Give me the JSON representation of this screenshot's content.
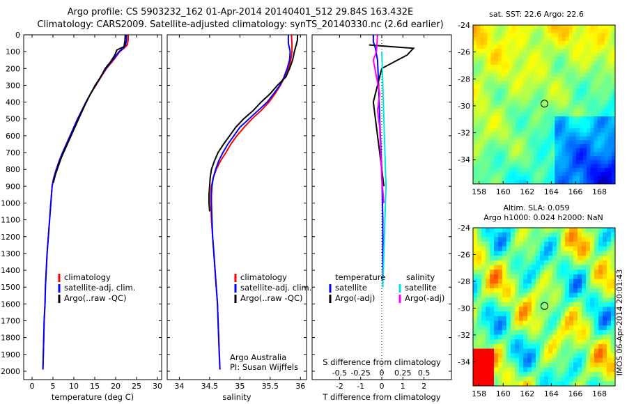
{
  "header": {
    "line1": "Argo profile: CS 5903232_162 01-Apr-2014 20140401_512 29.84S 163.432E",
    "line2": "Climatology: CARS2009. Satellite-adjusted climatology: synTS_20140330.nc (2.6d earlier)"
  },
  "colors": {
    "climatology": "#ff0000",
    "satellite": "#0000ff",
    "argo": "#000000",
    "sat_salinity": "#00e5e5",
    "argo_salinity": "#ff00ff"
  },
  "chart_data": [
    {
      "type": "line",
      "id": "temperature-profile",
      "xlabel": "temperature (deg C)",
      "ylabel": "",
      "xlim": [
        -2,
        31
      ],
      "ylim": [
        2050,
        0
      ],
      "xticks": [
        0,
        5,
        10,
        15,
        20,
        25,
        30
      ],
      "yticks": [
        0,
        100,
        200,
        300,
        400,
        500,
        600,
        700,
        800,
        900,
        1000,
        1100,
        1200,
        1300,
        1400,
        1500,
        1600,
        1700,
        1800,
        1900,
        2000
      ],
      "legend": [
        "climatology",
        "satellite-adj. clim.",
        "Argo(..raw -QC)"
      ],
      "series": [
        {
          "name": "climatology",
          "color": "#ff0000",
          "points": [
            [
              23.0,
              0
            ],
            [
              23.0,
              30
            ],
            [
              22.8,
              60
            ],
            [
              22.0,
              80
            ],
            [
              21.0,
              100
            ],
            [
              19.5,
              150
            ],
            [
              17.8,
              200
            ],
            [
              16.5,
              250
            ],
            [
              15.3,
              300
            ],
            [
              14.0,
              350
            ],
            [
              12.9,
              400
            ],
            [
              11.9,
              450
            ],
            [
              10.9,
              500
            ],
            [
              10.0,
              550
            ],
            [
              9.1,
              600
            ],
            [
              8.2,
              650
            ],
            [
              7.3,
              700
            ],
            [
              6.5,
              750
            ],
            [
              5.8,
              800
            ],
            [
              5.2,
              850
            ],
            [
              4.8,
              900
            ],
            [
              4.5,
              1000
            ],
            [
              4.2,
              1100
            ],
            [
              3.9,
              1200
            ],
            [
              3.6,
              1300
            ],
            [
              3.4,
              1400
            ],
            [
              3.2,
              1500
            ],
            [
              3.1,
              1600
            ],
            [
              2.9,
              1700
            ],
            [
              2.8,
              1800
            ],
            [
              2.7,
              1900
            ],
            [
              2.6,
              1990
            ]
          ]
        },
        {
          "name": "satellite-adj. clim.",
          "color": "#0000ff",
          "points": [
            [
              22.6,
              0
            ],
            [
              22.6,
              30
            ],
            [
              22.4,
              60
            ],
            [
              21.8,
              80
            ],
            [
              20.8,
              100
            ],
            [
              19.3,
              150
            ],
            [
              17.7,
              200
            ],
            [
              16.4,
              250
            ],
            [
              15.2,
              300
            ],
            [
              14.0,
              350
            ],
            [
              12.9,
              400
            ],
            [
              11.9,
              450
            ],
            [
              10.9,
              500
            ],
            [
              10.0,
              550
            ],
            [
              9.1,
              600
            ],
            [
              8.2,
              650
            ],
            [
              7.3,
              700
            ],
            [
              6.5,
              750
            ],
            [
              5.8,
              800
            ],
            [
              5.2,
              850
            ],
            [
              4.8,
              900
            ],
            [
              4.5,
              1000
            ],
            [
              4.2,
              1100
            ],
            [
              3.9,
              1200
            ],
            [
              3.6,
              1300
            ],
            [
              3.4,
              1400
            ],
            [
              3.2,
              1500
            ],
            [
              3.1,
              1600
            ],
            [
              2.9,
              1700
            ],
            [
              2.8,
              1800
            ],
            [
              2.7,
              1900
            ],
            [
              2.6,
              1990
            ]
          ]
        },
        {
          "name": "Argo(..raw -QC)",
          "color": "#000000",
          "points": [
            [
              22.3,
              0
            ],
            [
              22.2,
              40
            ],
            [
              22.0,
              70
            ],
            [
              20.3,
              90
            ],
            [
              19.8,
              120
            ],
            [
              18.8,
              160
            ],
            [
              17.5,
              200
            ],
            [
              16.2,
              260
            ],
            [
              15.1,
              300
            ],
            [
              13.6,
              370
            ],
            [
              12.6,
              420
            ],
            [
              11.5,
              480
            ],
            [
              10.6,
              530
            ],
            [
              9.7,
              580
            ],
            [
              8.8,
              630
            ],
            [
              7.9,
              680
            ],
            [
              7.0,
              730
            ],
            [
              6.3,
              780
            ],
            [
              5.6,
              830
            ],
            [
              5.1,
              880
            ]
          ]
        }
      ]
    },
    {
      "type": "line",
      "id": "salinity-profile",
      "xlabel": "salinity",
      "xlim": [
        33.8,
        36.1
      ],
      "ylim": [
        2050,
        0
      ],
      "xticks": [
        34,
        34.5,
        35,
        35.5,
        36
      ],
      "xtick_labels": [
        "34",
        "34.5",
        "35",
        "35.5",
        "36"
      ],
      "legend": [
        "climatology",
        "satellite-adj. clim.",
        "Argo(..raw -QC)"
      ],
      "annotation": [
        "Argo Australia",
        "PI: Susan Wijffels"
      ],
      "series": [
        {
          "name": "climatology",
          "color": "#ff0000",
          "points": [
            [
              35.85,
              0
            ],
            [
              35.86,
              50
            ],
            [
              35.86,
              100
            ],
            [
              35.84,
              150
            ],
            [
              35.8,
              200
            ],
            [
              35.74,
              250
            ],
            [
              35.67,
              300
            ],
            [
              35.58,
              350
            ],
            [
              35.48,
              400
            ],
            [
              35.35,
              450
            ],
            [
              35.2,
              500
            ],
            [
              35.07,
              550
            ],
            [
              34.95,
              600
            ],
            [
              34.85,
              650
            ],
            [
              34.77,
              700
            ],
            [
              34.68,
              750
            ],
            [
              34.61,
              800
            ],
            [
              34.56,
              850
            ],
            [
              34.53,
              900
            ],
            [
              34.52,
              950
            ],
            [
              34.52,
              1000
            ],
            [
              34.53,
              1100
            ],
            [
              34.55,
              1200
            ],
            [
              34.57,
              1300
            ],
            [
              34.59,
              1400
            ],
            [
              34.61,
              1500
            ],
            [
              34.63,
              1600
            ],
            [
              34.64,
              1700
            ],
            [
              34.65,
              1800
            ],
            [
              34.66,
              1900
            ],
            [
              34.67,
              1990
            ]
          ]
        },
        {
          "name": "satellite-adj. clim.",
          "color": "#0000ff",
          "points": [
            [
              35.8,
              0
            ],
            [
              35.8,
              50
            ],
            [
              35.83,
              100
            ],
            [
              35.82,
              150
            ],
            [
              35.78,
              200
            ],
            [
              35.73,
              250
            ],
            [
              35.66,
              300
            ],
            [
              35.56,
              350
            ],
            [
              35.45,
              400
            ],
            [
              35.3,
              450
            ],
            [
              35.15,
              500
            ],
            [
              35.0,
              550
            ],
            [
              34.9,
              600
            ],
            [
              34.8,
              650
            ],
            [
              34.72,
              700
            ],
            [
              34.65,
              750
            ],
            [
              34.6,
              800
            ],
            [
              34.56,
              850
            ],
            [
              34.54,
              900
            ],
            [
              34.53,
              950
            ],
            [
              34.53,
              1000
            ],
            [
              34.54,
              1100
            ],
            [
              34.55,
              1200
            ],
            [
              34.57,
              1300
            ],
            [
              34.59,
              1400
            ],
            [
              34.61,
              1500
            ],
            [
              34.63,
              1600
            ],
            [
              34.64,
              1700
            ],
            [
              34.65,
              1800
            ],
            [
              34.66,
              1900
            ],
            [
              34.67,
              1990
            ]
          ]
        },
        {
          "name": "Argo(..raw -QC)",
          "color": "#000000",
          "points": [
            [
              35.95,
              0
            ],
            [
              35.95,
              30
            ],
            [
              35.93,
              60
            ],
            [
              35.9,
              100
            ],
            [
              35.87,
              150
            ],
            [
              35.82,
              200
            ],
            [
              35.76,
              250
            ],
            [
              35.62,
              300
            ],
            [
              35.5,
              350
            ],
            [
              35.35,
              400
            ],
            [
              35.22,
              450
            ],
            [
              35.06,
              500
            ],
            [
              34.93,
              550
            ],
            [
              34.83,
              600
            ],
            [
              34.73,
              650
            ],
            [
              34.64,
              700
            ],
            [
              34.58,
              750
            ],
            [
              34.53,
              800
            ],
            [
              34.51,
              850
            ],
            [
              34.5,
              900
            ],
            [
              34.49,
              950
            ],
            [
              34.49,
              1000
            ],
            [
              34.5,
              1050
            ]
          ]
        }
      ]
    },
    {
      "type": "line",
      "id": "difference-profile",
      "xlabel_top": "S difference from climatology",
      "xlabel": "T difference from climatology",
      "xlim": [
        -3.3,
        3.3
      ],
      "ylim": [
        2050,
        0
      ],
      "xticks": [
        -2,
        -1,
        0,
        1,
        2
      ],
      "top_ticks": [
        "-0.5",
        "-0.25",
        "0",
        "0.25",
        "0.5"
      ],
      "legend_headings": [
        "temperature",
        "salinity"
      ],
      "legend": [
        "satellite",
        "Argo(-adj)",
        "satellite",
        "Argo(-adj)"
      ],
      "series": [
        {
          "name": "satellite",
          "quantity": "temperature",
          "color": "#0000ff",
          "points": [
            [
              -0.4,
              0
            ],
            [
              -0.4,
              40
            ],
            [
              -0.3,
              80
            ],
            [
              -0.2,
              150
            ],
            [
              -0.15,
              300
            ],
            [
              -0.1,
              500
            ],
            [
              0.0,
              800
            ],
            [
              0.05,
              1100
            ],
            [
              0.05,
              1500
            ]
          ]
        },
        {
          "name": "Argo(-adj)",
          "quantity": "temperature",
          "color": "#000000",
          "points": [
            [
              -0.6,
              60
            ],
            [
              0.4,
              70
            ],
            [
              1.5,
              80
            ],
            [
              1.2,
              120
            ],
            [
              0.0,
              200
            ],
            [
              -0.2,
              300
            ],
            [
              -0.4,
              400
            ],
            [
              -0.3,
              500
            ],
            [
              -0.2,
              600
            ],
            [
              -0.1,
              700
            ],
            [
              0.0,
              800
            ],
            [
              0.1,
              900
            ]
          ]
        },
        {
          "name": "satellite",
          "quantity": "salinity",
          "color": "#00e5e5",
          "points": [
            [
              0.0,
              100
            ],
            [
              0.05,
              300
            ],
            [
              0.1,
              500
            ],
            [
              0.15,
              700
            ],
            [
              0.2,
              900
            ],
            [
              0.15,
              1100
            ],
            [
              0.1,
              1300
            ],
            [
              0.05,
              1500
            ]
          ]
        },
        {
          "name": "Argo(-adj)",
          "quantity": "salinity",
          "color": "#ff00ff",
          "points": [
            [
              -0.2,
              0
            ],
            [
              -0.25,
              100
            ],
            [
              -0.4,
              150
            ],
            [
              -0.25,
              250
            ],
            [
              -0.1,
              350
            ],
            [
              -0.2,
              450
            ],
            [
              -0.1,
              550
            ],
            [
              -0.05,
              700
            ],
            [
              0.0,
              850
            ],
            [
              0.1,
              1000
            ]
          ]
        }
      ]
    },
    {
      "type": "heatmap",
      "id": "sst-map",
      "title": "sat. SST: 22.6  Argo: 22.6",
      "xlim": [
        157.5,
        169.3
      ],
      "ylim": [
        -35.8,
        -24
      ],
      "xticks": [
        158,
        160,
        162,
        164,
        166,
        168
      ],
      "yticks": [
        -24,
        -26,
        -28,
        -30,
        -32,
        -34
      ],
      "marker": [
        163.43,
        -29.84
      ]
    },
    {
      "type": "heatmap",
      "id": "sla-map",
      "title": "Altim. SLA: 0.059",
      "subtitle": "Argo h1000: 0.024 h2000: NaN",
      "xlim": [
        157.5,
        169.3
      ],
      "ylim": [
        -35.8,
        -24
      ],
      "xticks": [
        158,
        160,
        162,
        164,
        166,
        168
      ],
      "yticks": [
        -24,
        -26,
        -28,
        -30,
        -32,
        -34
      ],
      "marker": [
        163.43,
        -29.84
      ],
      "side_label": "IMOS 06-Apr-2014 20:01:43"
    }
  ]
}
